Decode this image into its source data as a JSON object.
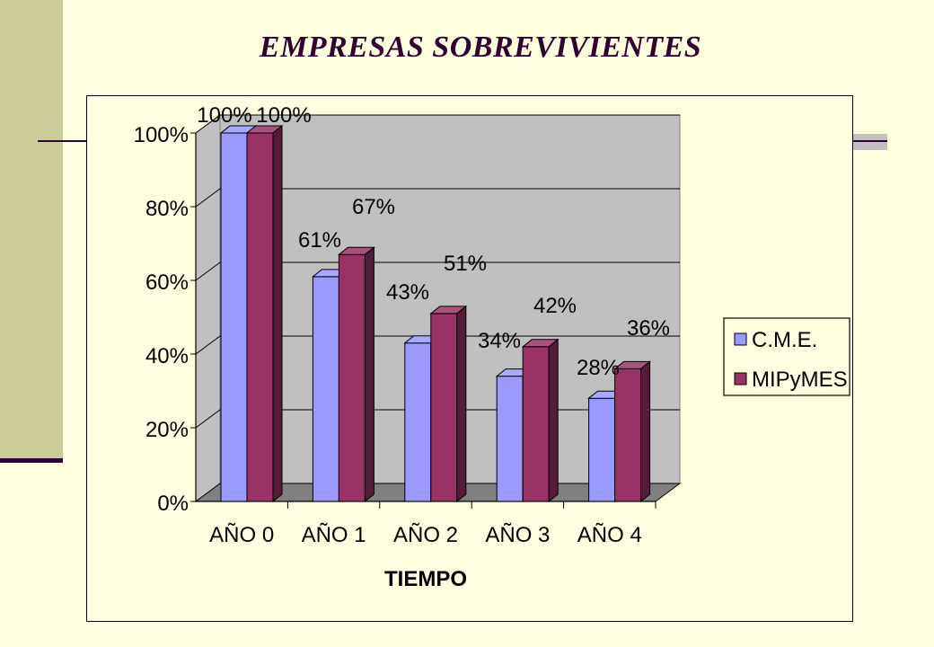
{
  "page": {
    "title": "EMPRESAS SOBREVIVIENTES"
  },
  "chart_data": {
    "type": "bar",
    "categories": [
      "AÑO 0",
      "AÑO 1",
      "AÑO 2",
      "AÑO 3",
      "AÑO 4"
    ],
    "series": [
      {
        "name": "C.M.E.",
        "values": [
          100,
          61,
          43,
          34,
          28
        ],
        "color": "#9999FF",
        "labels": [
          "100%",
          "61%",
          "43%",
          "34%",
          "28%"
        ]
      },
      {
        "name": "MIPyMES",
        "values": [
          100,
          67,
          51,
          42,
          36
        ],
        "color": "#993366",
        "labels": [
          "100%",
          "67%",
          "51%",
          "42%",
          "36%"
        ]
      }
    ],
    "title": "",
    "xlabel": "TIEMPO",
    "ylabel": "",
    "ylim": [
      0,
      100
    ],
    "yticks": [
      "0%",
      "20%",
      "40%",
      "60%",
      "80%",
      "100%"
    ],
    "grid": true,
    "legend_position": "right",
    "plot_background": "#C0C0C0",
    "floor_color": "#808080"
  }
}
